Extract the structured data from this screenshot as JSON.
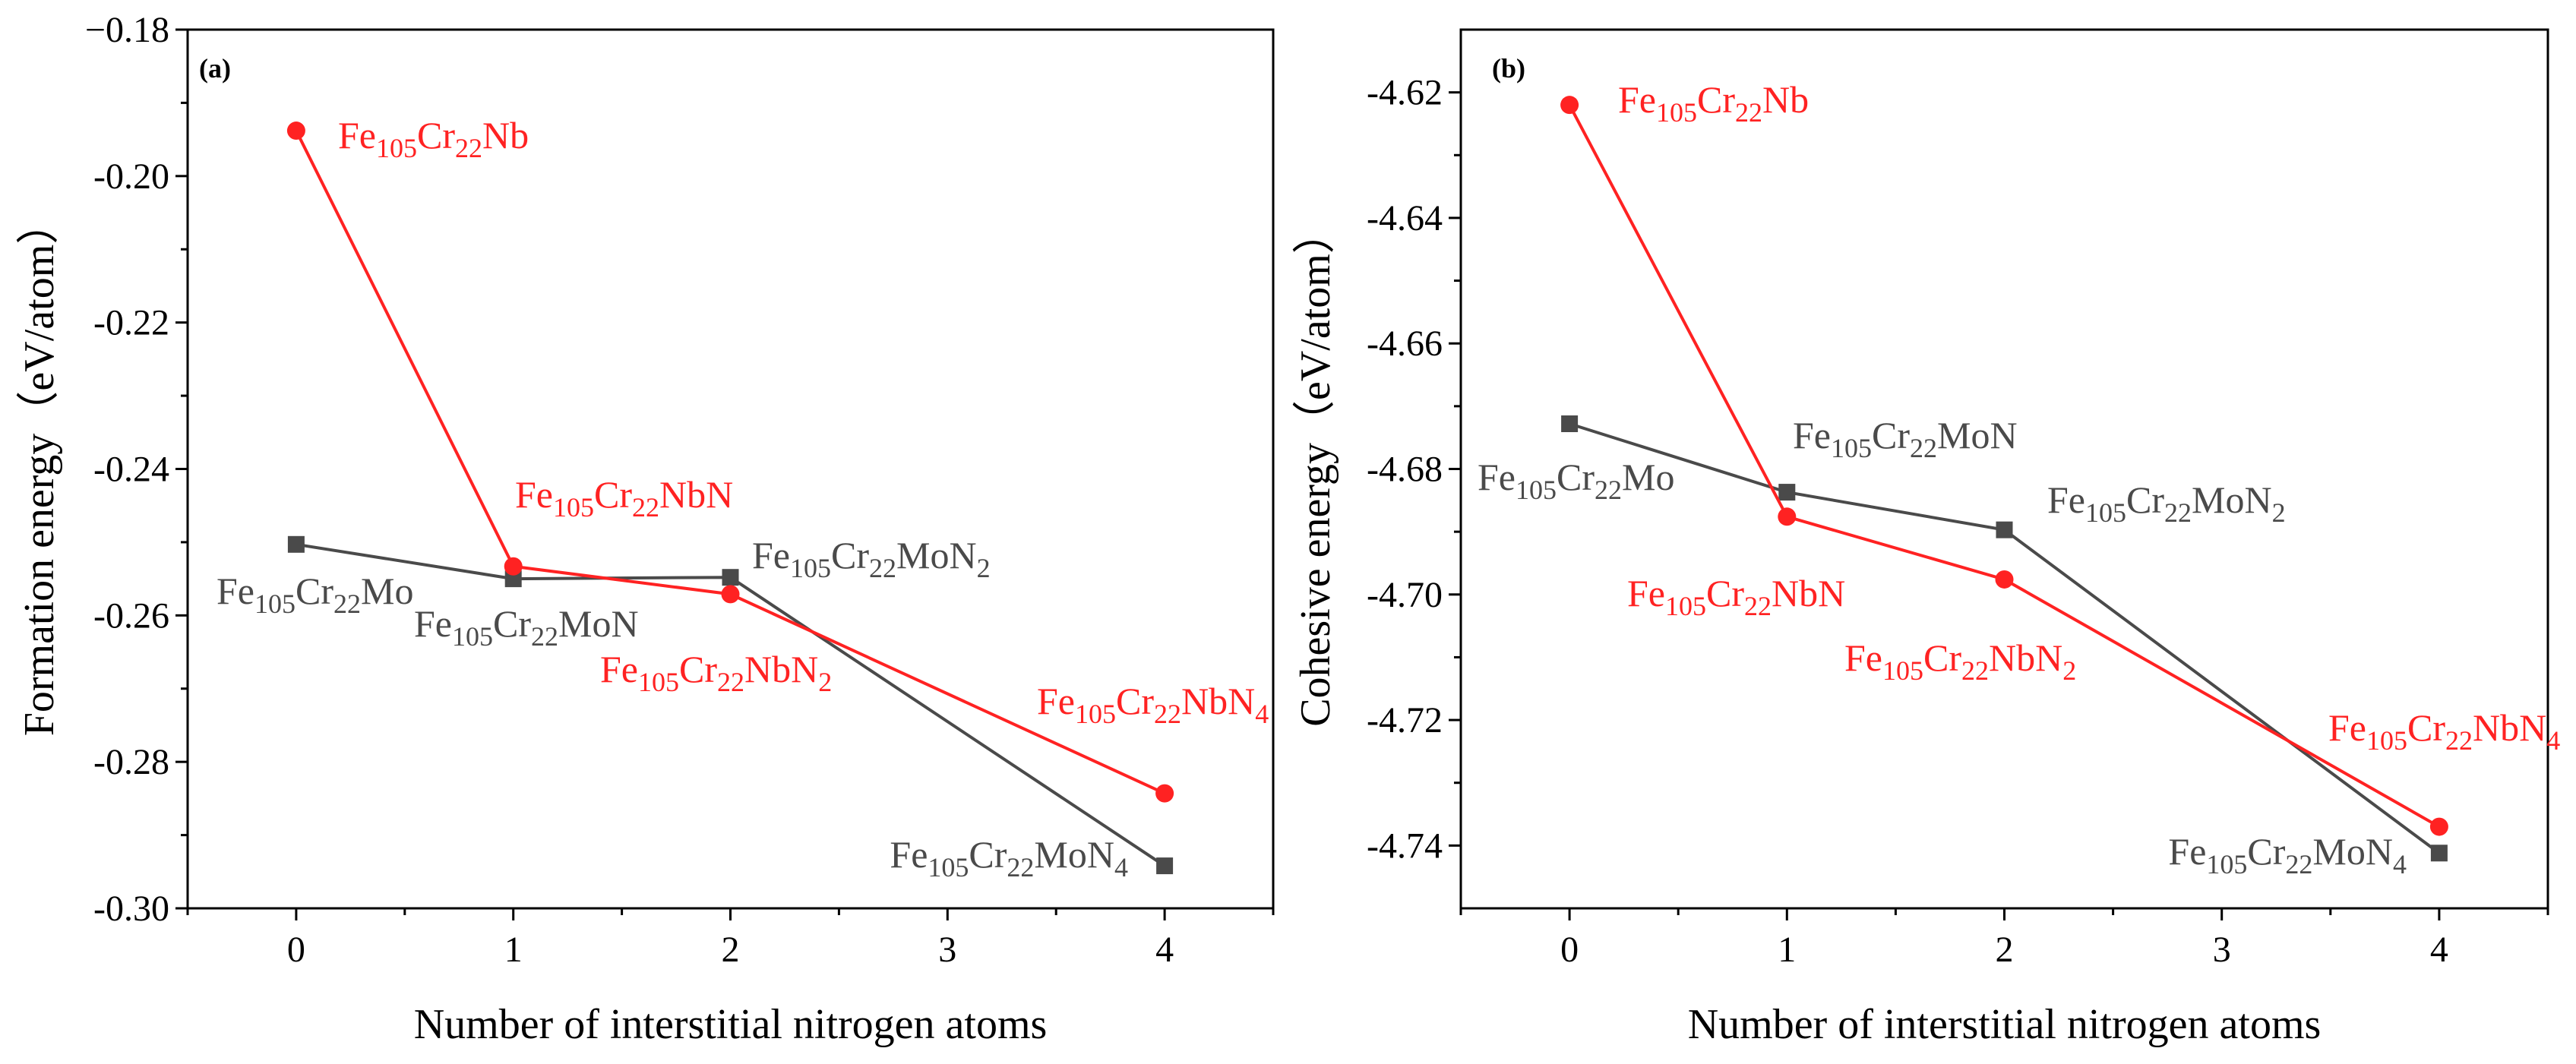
{
  "colors": {
    "mo": "#4a4a4a",
    "nb": "#ff2222",
    "axis": "#000000"
  },
  "chart_data": [
    {
      "panel_label": "(a)",
      "type": "line",
      "xlabel": "Number of interstitial nitrogen atoms",
      "ylabel": "Formation energy（eV/atom）",
      "xlim": [
        -0.5,
        4.5
      ],
      "ylim": [
        -0.3,
        -0.18
      ],
      "xticks": [
        0,
        1,
        2,
        3,
        4
      ],
      "xtick_labels": [
        "0",
        "1",
        "2",
        "3",
        "4"
      ],
      "yticks": [
        -0.3,
        -0.28,
        -0.26,
        -0.24,
        -0.22,
        -0.2,
        -0.18
      ],
      "ytick_labels": [
        "-0.30",
        "-0.28",
        "-0.26",
        "-0.24",
        "-0.22",
        "-0.20",
        "−0.18"
      ],
      "series": [
        {
          "name": "Mo",
          "color_key": "mo",
          "marker": "square",
          "x": [
            0,
            1,
            2,
            4
          ],
          "y": [
            -0.2503,
            -0.255,
            -0.2548,
            -0.2942
          ],
          "labels": [
            "Fe105Cr22Mo",
            "Fe105Cr22MoN",
            "Fe105Cr22MoN2",
            "Fe105Cr22MoN4"
          ]
        },
        {
          "name": "Nb",
          "color_key": "nb",
          "marker": "circle",
          "x": [
            0,
            1,
            2,
            4
          ],
          "y": [
            -0.1938,
            -0.2533,
            -0.2571,
            -0.2843
          ],
          "labels": [
            "Fe105Cr22Nb",
            "Fe105Cr22NbN",
            "Fe105Cr22NbN2",
            "Fe105Cr22NbN4"
          ]
        }
      ]
    },
    {
      "panel_label": "(b)",
      "type": "line",
      "xlabel": "Number of interstitial nitrogen atoms",
      "ylabel": "Cohesive energy（eV/atom）",
      "xlim": [
        -0.5,
        4.5
      ],
      "ylim": [
        -4.75,
        -4.61
      ],
      "xticks": [
        0,
        1,
        2,
        3,
        4
      ],
      "xtick_labels": [
        "0",
        "1",
        "2",
        "3",
        "4"
      ],
      "yticks": [
        -4.74,
        -4.72,
        -4.7,
        -4.68,
        -4.66,
        -4.64,
        -4.62
      ],
      "ytick_labels": [
        "-4.74",
        "-4.72",
        "-4.70",
        "-4.68",
        "-4.66",
        "-4.64",
        "-4.62"
      ],
      "series": [
        {
          "name": "Mo",
          "color_key": "mo",
          "marker": "square",
          "x": [
            0,
            1,
            2,
            4
          ],
          "y": [
            -4.6728,
            -4.6837,
            -4.6897,
            -4.7412
          ],
          "labels": [
            "Fe105Cr22Mo",
            "Fe105Cr22MoN",
            "Fe105Cr22MoN2",
            "Fe105Cr22MoN4"
          ]
        },
        {
          "name": "Nb",
          "color_key": "nb",
          "marker": "circle",
          "x": [
            0,
            1,
            2,
            4
          ],
          "y": [
            -4.622,
            -4.6876,
            -4.6976,
            -4.737
          ],
          "labels": [
            "Fe105Cr22Nb",
            "Fe105Cr22NbN",
            "Fe105Cr22NbN2",
            "Fe105Cr22NbN4"
          ]
        }
      ]
    }
  ]
}
